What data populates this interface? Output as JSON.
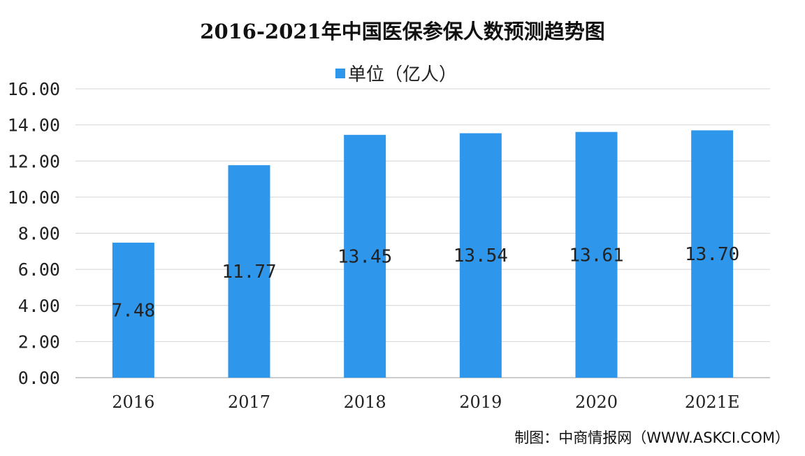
{
  "chart_data": {
    "type": "bar",
    "title": "2016-2021年中国医保参保人数预测趋势图",
    "categories": [
      "2016",
      "2017",
      "2018",
      "2019",
      "2020",
      "2021E"
    ],
    "series": [
      {
        "name": "单位（亿人）",
        "values": [
          7.48,
          11.77,
          13.45,
          13.54,
          13.61,
          13.7
        ],
        "color": "#2e96eb"
      }
    ],
    "data_labels": [
      "7.48",
      "11.77",
      "13.45",
      "13.54",
      "13.61",
      "13.70"
    ],
    "ylim": [
      0,
      16
    ],
    "yticks": [
      "0.00",
      "2.00",
      "4.00",
      "6.00",
      "8.00",
      "10.00",
      "12.00",
      "14.00",
      "16.00"
    ],
    "grid": true,
    "legend_position": "top"
  },
  "source": "制图：中商情报网（WWW.ASKCI.COM）"
}
